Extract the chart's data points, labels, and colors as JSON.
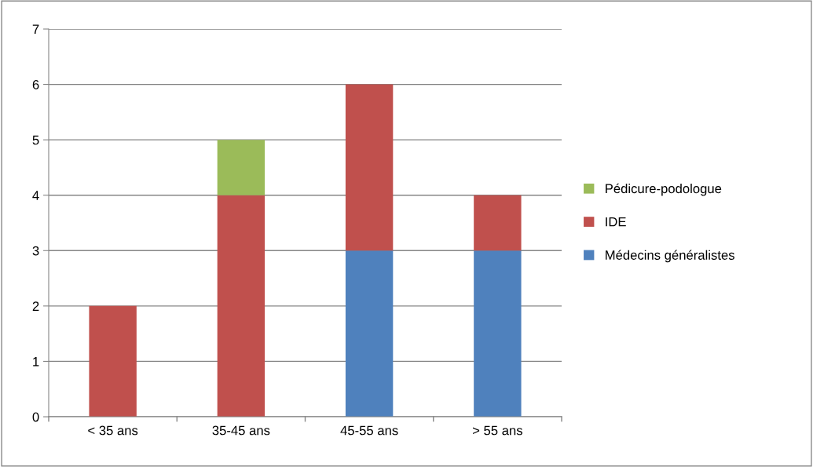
{
  "chart_data": {
    "type": "bar",
    "stacked": true,
    "categories": [
      "< 35 ans",
      "35-45 ans",
      "45-55 ans",
      "> 55 ans"
    ],
    "series": [
      {
        "name": "Médecins généralistes",
        "color": "#4f81bd",
        "values": [
          0,
          0,
          3,
          3
        ]
      },
      {
        "name": "IDE",
        "color": "#c0504d",
        "values": [
          2,
          4,
          3,
          1
        ]
      },
      {
        "name": "Pédicure-podologue",
        "color": "#9bbb59",
        "values": [
          0,
          1,
          0,
          0
        ]
      }
    ],
    "ylim": [
      0,
      7
    ],
    "yticks": [
      0,
      1,
      2,
      3,
      4,
      5,
      6,
      7
    ],
    "grid": "y",
    "legend": "right"
  }
}
